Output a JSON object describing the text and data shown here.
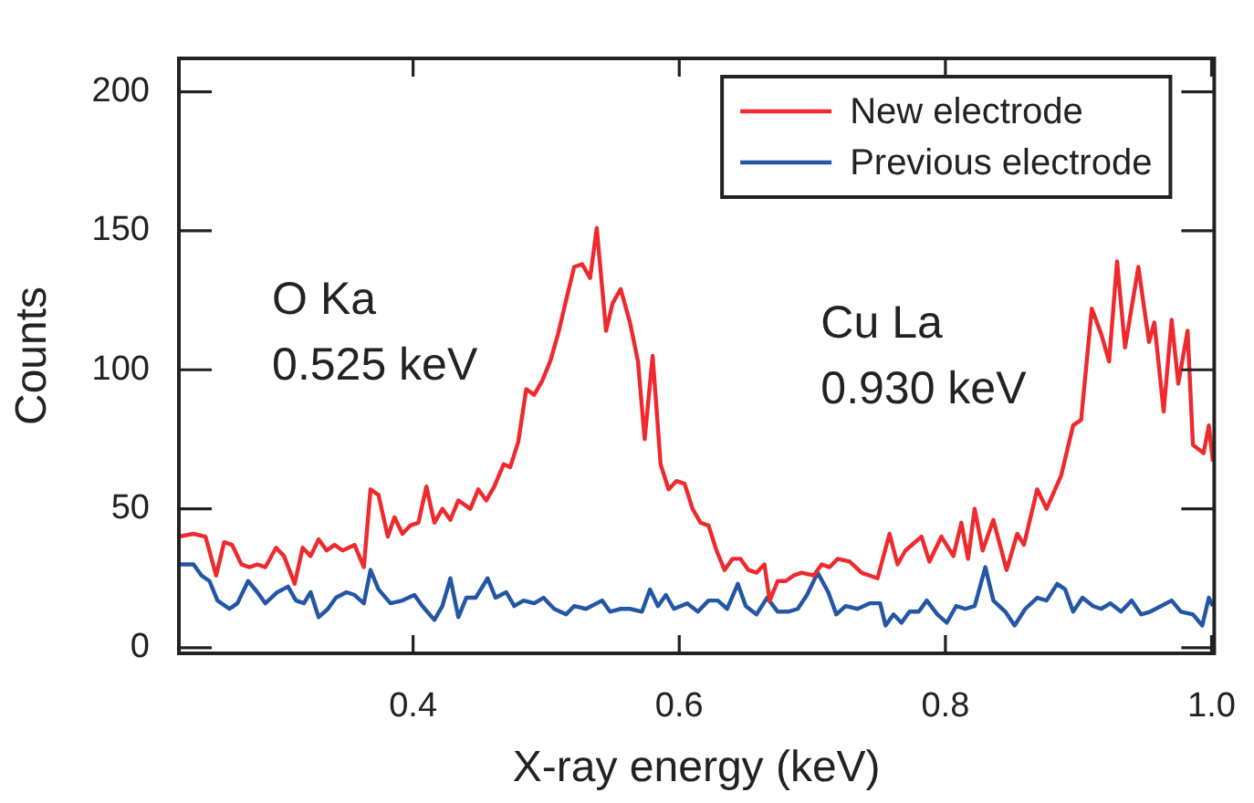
{
  "chart_data": {
    "type": "line",
    "xlabel": "X-ray energy (keV)",
    "ylabel": "Counts",
    "xlim": [
      0.224,
      1.002
    ],
    "xticks": [
      0.4,
      0.6,
      0.8,
      {
        "value": 1.0,
        "label": "1.0"
      }
    ],
    "ylim": [
      -2,
      212
    ],
    "yticks": [
      0,
      50,
      100,
      150,
      200
    ],
    "grid": false,
    "legend": "top right",
    "marker": "none",
    "line_style": "solid",
    "series": [
      {
        "name": "New electrode",
        "color": "#ee2a2e",
        "x": [
          0.224,
          0.235,
          0.244,
          0.252,
          0.258,
          0.264,
          0.271,
          0.277,
          0.283,
          0.289,
          0.297,
          0.303,
          0.311,
          0.317,
          0.323,
          0.329,
          0.335,
          0.341,
          0.347,
          0.356,
          0.363,
          0.368,
          0.374,
          0.381,
          0.386,
          0.392,
          0.398,
          0.404,
          0.41,
          0.416,
          0.422,
          0.428,
          0.434,
          0.443,
          0.449,
          0.455,
          0.461,
          0.468,
          0.473,
          0.479,
          0.485,
          0.491,
          0.497,
          0.503,
          0.509,
          0.515,
          0.521,
          0.527,
          0.533,
          0.538,
          0.545,
          0.55,
          0.556,
          0.563,
          0.569,
          0.574,
          0.58,
          0.586,
          0.592,
          0.598,
          0.604,
          0.61,
          0.616,
          0.622,
          0.628,
          0.634,
          0.64,
          0.646,
          0.652,
          0.658,
          0.664,
          0.668,
          0.674,
          0.68,
          0.686,
          0.692,
          0.701,
          0.707,
          0.713,
          0.719,
          0.728,
          0.737,
          0.749,
          0.758,
          0.764,
          0.77,
          0.782,
          0.788,
          0.797,
          0.806,
          0.812,
          0.817,
          0.822,
          0.828,
          0.836,
          0.846,
          0.854,
          0.859,
          0.869,
          0.876,
          0.887,
          0.896,
          0.902,
          0.91,
          0.917,
          0.923,
          0.929,
          0.935,
          0.945,
          0.953,
          0.957,
          0.964,
          0.97,
          0.975,
          0.982,
          0.986,
          0.994,
          0.998,
          1.001
        ],
        "values": [
          40,
          41,
          40,
          26,
          38,
          37,
          30,
          29,
          30,
          29,
          36,
          33,
          23,
          36,
          33,
          39,
          35,
          37,
          35,
          37,
          29,
          57,
          55,
          40,
          47,
          41,
          44,
          45,
          58,
          45,
          50,
          46,
          53,
          50,
          57,
          53,
          58,
          66,
          65,
          74,
          93,
          91,
          96,
          103,
          113,
          125,
          137,
          138,
          133,
          151,
          114,
          124,
          129,
          117,
          103,
          75,
          105,
          66,
          57,
          60,
          59,
          50,
          45,
          44,
          35,
          28,
          32,
          32,
          28,
          27,
          30,
          17,
          24,
          24,
          26,
          27,
          26,
          30,
          29,
          32,
          31,
          27,
          25,
          41,
          30,
          35,
          40,
          31,
          40,
          33,
          45,
          32,
          50,
          35,
          46,
          28,
          41,
          37,
          57,
          50,
          62,
          80,
          82,
          122,
          113,
          103,
          139,
          108,
          137,
          110,
          117,
          85,
          118,
          95,
          114,
          73,
          70,
          80,
          67
        ]
      },
      {
        "name": "Previous electrode",
        "color": "#2456a6",
        "x": [
          0.224,
          0.235,
          0.241,
          0.247,
          0.253,
          0.262,
          0.268,
          0.276,
          0.283,
          0.289,
          0.298,
          0.306,
          0.312,
          0.318,
          0.323,
          0.329,
          0.336,
          0.342,
          0.35,
          0.356,
          0.363,
          0.368,
          0.374,
          0.383,
          0.392,
          0.401,
          0.407,
          0.416,
          0.422,
          0.428,
          0.434,
          0.44,
          0.447,
          0.456,
          0.462,
          0.47,
          0.476,
          0.483,
          0.491,
          0.498,
          0.506,
          0.515,
          0.521,
          0.53,
          0.542,
          0.548,
          0.556,
          0.563,
          0.572,
          0.578,
          0.584,
          0.59,
          0.596,
          0.606,
          0.614,
          0.622,
          0.629,
          0.636,
          0.644,
          0.65,
          0.658,
          0.666,
          0.674,
          0.682,
          0.689,
          0.696,
          0.704,
          0.712,
          0.718,
          0.725,
          0.734,
          0.743,
          0.751,
          0.755,
          0.761,
          0.767,
          0.773,
          0.78,
          0.786,
          0.794,
          0.801,
          0.808,
          0.815,
          0.822,
          0.83,
          0.836,
          0.845,
          0.852,
          0.86,
          0.869,
          0.876,
          0.884,
          0.89,
          0.896,
          0.903,
          0.911,
          0.917,
          0.924,
          0.932,
          0.94,
          0.947,
          0.954,
          0.962,
          0.97,
          0.977,
          0.986,
          0.993,
          0.998,
          1.001
        ],
        "values": [
          30,
          30,
          26,
          24,
          17,
          14,
          16,
          24,
          20,
          16,
          20,
          22,
          17,
          16,
          20,
          11,
          14,
          18,
          20,
          19,
          16,
          28,
          21,
          16,
          17,
          19,
          15,
          10,
          15,
          25,
          11,
          18,
          18,
          25,
          18,
          20,
          15,
          17,
          16,
          18,
          14,
          12,
          15,
          14,
          17,
          13,
          14,
          14,
          13,
          21,
          15,
          19,
          14,
          16,
          13,
          17,
          17,
          14,
          23,
          15,
          12,
          18,
          13,
          13,
          14,
          19,
          27,
          20,
          12,
          15,
          14,
          16,
          16,
          8,
          12,
          9,
          13,
          13,
          17,
          12,
          9,
          15,
          14,
          15,
          29,
          17,
          13,
          8,
          14,
          18,
          17,
          23,
          21,
          13,
          18,
          15,
          14,
          16,
          13,
          17,
          12,
          13,
          15,
          17,
          13,
          12,
          8,
          18,
          15
        ]
      }
    ],
    "annotations": [
      "O Ka",
      "0.525 keV",
      "Cu La",
      "0.930 keV"
    ]
  }
}
